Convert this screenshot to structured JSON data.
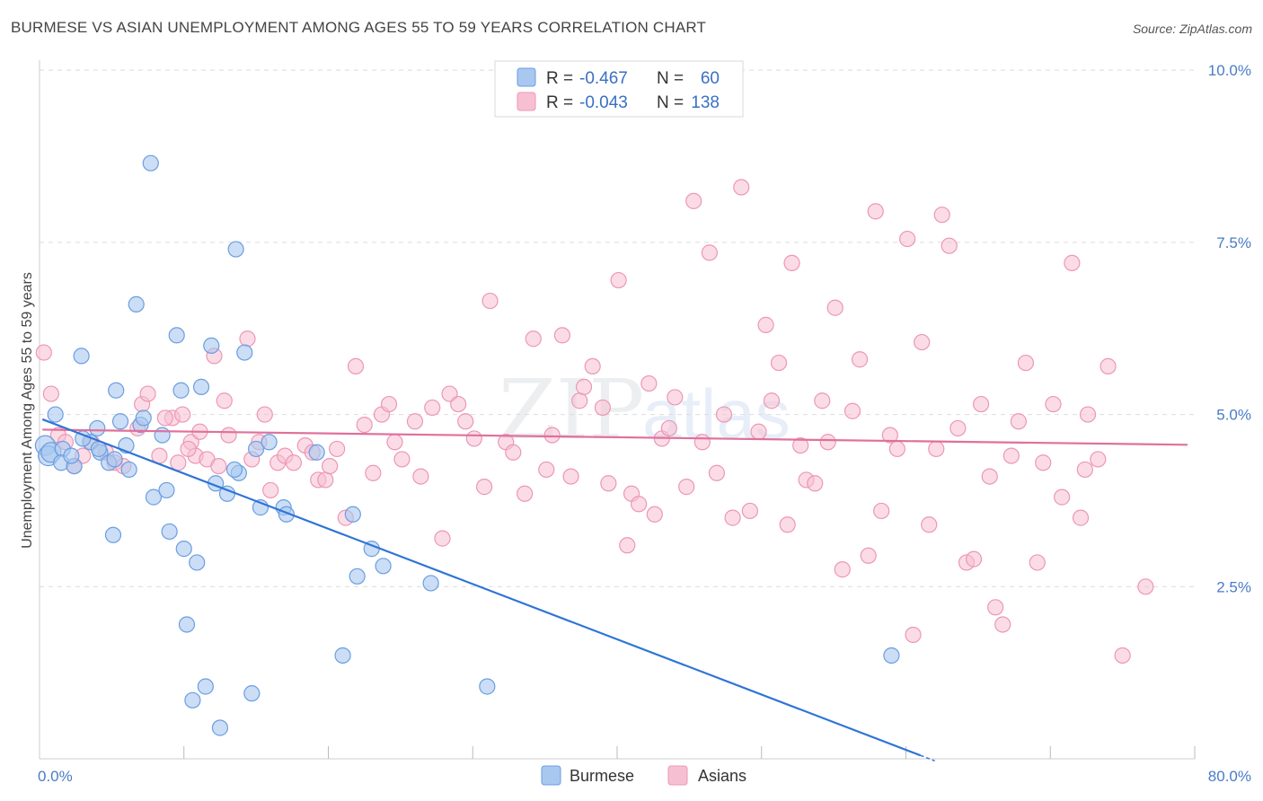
{
  "title": "BURMESE VS ASIAN UNEMPLOYMENT AMONG AGES 55 TO 59 YEARS CORRELATION CHART",
  "source": "Source: ZipAtlas.com",
  "watermark": {
    "zip": "ZIP",
    "atlas": "atlas"
  },
  "colors": {
    "burmese_fill": "#a9c8f0",
    "burmese_stroke": "#6a9ee0",
    "burmese_line": "#2f74d6",
    "asians_fill": "#f7c0d2",
    "asians_stroke": "#ec97b5",
    "asians_line": "#e0709b",
    "tick_text": "#4a7bc8",
    "grid": "#dcdcdc"
  },
  "legend": {
    "r_label": "R =",
    "n_label": "N =",
    "burmese": {
      "r": "-0.467",
      "n": "60"
    },
    "asians": {
      "r": "-0.043",
      "n": "138"
    }
  },
  "bottom_legend": {
    "burmese": "Burmese",
    "asians": "Asians"
  },
  "chart_data": {
    "type": "scatter",
    "title": "BURMESE VS ASIAN UNEMPLOYMENT AMONG AGES 55 TO 59 YEARS CORRELATION CHART",
    "xlabel": "",
    "ylabel": "Unemployment Among Ages 55 to 59 years",
    "xlim": [
      0,
      80
    ],
    "ylim": [
      0,
      10.25
    ],
    "x_tick_labels": [
      "0.0%",
      "80.0%"
    ],
    "y_ticks": [
      2.5,
      5.0,
      7.5,
      10.0
    ],
    "y_tick_labels": [
      "2.5%",
      "5.0%",
      "7.5%",
      "10.0%"
    ],
    "series": [
      {
        "name": "Burmese",
        "r": -0.467,
        "n": 60,
        "trend": {
          "x0": 0.2,
          "y0": 4.93,
          "x1": 61.0,
          "y1": 0.05,
          "dashed_to_x": 62.0
        },
        "points": [
          [
            0.4,
            4.55
          ],
          [
            0.6,
            4.4
          ],
          [
            0.8,
            4.45
          ],
          [
            1.1,
            5.0
          ],
          [
            1.6,
            4.5
          ],
          [
            1.5,
            4.3
          ],
          [
            2.4,
            4.25
          ],
          [
            2.9,
            5.85
          ],
          [
            3.5,
            4.6
          ],
          [
            4.0,
            4.8
          ],
          [
            4.2,
            4.45
          ],
          [
            4.8,
            4.3
          ],
          [
            5.3,
            5.35
          ],
          [
            5.6,
            4.9
          ],
          [
            5.1,
            3.25
          ],
          [
            6.2,
            4.2
          ],
          [
            6.7,
            6.6
          ],
          [
            7.0,
            4.85
          ],
          [
            7.2,
            4.95
          ],
          [
            7.7,
            8.65
          ],
          [
            7.9,
            3.8
          ],
          [
            8.5,
            4.7
          ],
          [
            8.8,
            3.9
          ],
          [
            9.0,
            3.3
          ],
          [
            9.5,
            6.15
          ],
          [
            9.8,
            5.35
          ],
          [
            10.0,
            3.05
          ],
          [
            10.2,
            1.95
          ],
          [
            10.6,
            0.85
          ],
          [
            10.9,
            2.85
          ],
          [
            11.2,
            5.4
          ],
          [
            11.5,
            1.05
          ],
          [
            11.9,
            6.0
          ],
          [
            12.2,
            4.0
          ],
          [
            12.5,
            0.45
          ],
          [
            13.0,
            3.85
          ],
          [
            13.6,
            7.4
          ],
          [
            13.8,
            4.15
          ],
          [
            14.2,
            5.9
          ],
          [
            14.7,
            0.95
          ],
          [
            15.0,
            4.5
          ],
          [
            15.3,
            3.65
          ],
          [
            15.9,
            4.6
          ],
          [
            16.9,
            3.65
          ],
          [
            17.1,
            3.55
          ],
          [
            19.2,
            4.45
          ],
          [
            21.7,
            3.55
          ],
          [
            22.0,
            2.65
          ],
          [
            23.0,
            3.05
          ],
          [
            23.8,
            2.8
          ],
          [
            21.0,
            1.5
          ],
          [
            27.1,
            2.55
          ],
          [
            31.0,
            1.05
          ],
          [
            59.0,
            1.5
          ],
          [
            4.1,
            4.5
          ],
          [
            3.0,
            4.65
          ],
          [
            6.0,
            4.55
          ],
          [
            2.2,
            4.4
          ],
          [
            5.2,
            4.35
          ],
          [
            13.5,
            4.2
          ]
        ]
      },
      {
        "name": "Asians",
        "r": -0.043,
        "n": 138,
        "trend": {
          "x0": 0.2,
          "y0": 4.78,
          "x1": 79.5,
          "y1": 4.56
        },
        "points": [
          [
            0.3,
            5.9
          ],
          [
            0.8,
            5.3
          ],
          [
            1.3,
            4.7
          ],
          [
            1.8,
            4.6
          ],
          [
            2.4,
            4.25
          ],
          [
            3.0,
            4.4
          ],
          [
            3.6,
            4.6
          ],
          [
            4.6,
            4.45
          ],
          [
            5.2,
            4.3
          ],
          [
            5.8,
            4.25
          ],
          [
            6.8,
            4.8
          ],
          [
            7.1,
            5.15
          ],
          [
            7.5,
            5.3
          ],
          [
            8.3,
            4.4
          ],
          [
            9.2,
            4.95
          ],
          [
            9.9,
            5.0
          ],
          [
            10.5,
            4.6
          ],
          [
            10.8,
            4.4
          ],
          [
            11.6,
            4.35
          ],
          [
            12.1,
            5.85
          ],
          [
            12.4,
            4.25
          ],
          [
            12.8,
            5.2
          ],
          [
            13.1,
            4.7
          ],
          [
            14.4,
            6.1
          ],
          [
            14.7,
            4.35
          ],
          [
            15.6,
            5.0
          ],
          [
            16.0,
            3.9
          ],
          [
            16.5,
            4.3
          ],
          [
            17.0,
            4.4
          ],
          [
            17.6,
            4.3
          ],
          [
            18.4,
            4.55
          ],
          [
            18.9,
            4.45
          ],
          [
            19.3,
            4.05
          ],
          [
            19.8,
            4.05
          ],
          [
            20.1,
            4.25
          ],
          [
            20.6,
            4.5
          ],
          [
            21.2,
            3.5
          ],
          [
            21.9,
            5.7
          ],
          [
            22.5,
            4.85
          ],
          [
            23.1,
            4.15
          ],
          [
            23.7,
            5.0
          ],
          [
            24.2,
            5.15
          ],
          [
            24.6,
            4.6
          ],
          [
            25.1,
            4.35
          ],
          [
            26.0,
            4.9
          ],
          [
            26.4,
            4.1
          ],
          [
            27.2,
            5.1
          ],
          [
            27.9,
            3.2
          ],
          [
            28.4,
            5.3
          ],
          [
            29.0,
            5.15
          ],
          [
            29.5,
            4.9
          ],
          [
            30.1,
            4.65
          ],
          [
            30.8,
            3.95
          ],
          [
            31.2,
            6.65
          ],
          [
            32.3,
            4.6
          ],
          [
            32.8,
            4.45
          ],
          [
            33.6,
            3.85
          ],
          [
            34.2,
            6.1
          ],
          [
            35.1,
            4.2
          ],
          [
            35.5,
            4.7
          ],
          [
            36.2,
            6.15
          ],
          [
            36.8,
            4.1
          ],
          [
            37.4,
            5.2
          ],
          [
            37.7,
            5.4
          ],
          [
            38.3,
            5.7
          ],
          [
            39.0,
            5.1
          ],
          [
            39.4,
            4.0
          ],
          [
            40.1,
            6.95
          ],
          [
            40.7,
            3.1
          ],
          [
            41.0,
            3.85
          ],
          [
            41.5,
            3.7
          ],
          [
            42.2,
            5.45
          ],
          [
            42.6,
            3.55
          ],
          [
            43.1,
            4.65
          ],
          [
            43.6,
            4.8
          ],
          [
            44.0,
            5.25
          ],
          [
            44.8,
            3.95
          ],
          [
            45.3,
            8.1
          ],
          [
            45.9,
            4.6
          ],
          [
            46.4,
            7.35
          ],
          [
            46.9,
            4.15
          ],
          [
            47.4,
            5.0
          ],
          [
            48.0,
            3.5
          ],
          [
            48.6,
            8.3
          ],
          [
            49.2,
            3.6
          ],
          [
            49.8,
            4.75
          ],
          [
            50.3,
            6.3
          ],
          [
            50.7,
            5.2
          ],
          [
            51.2,
            5.75
          ],
          [
            51.8,
            3.4
          ],
          [
            52.1,
            7.2
          ],
          [
            52.7,
            4.55
          ],
          [
            53.1,
            4.05
          ],
          [
            53.7,
            4.0
          ],
          [
            54.2,
            5.2
          ],
          [
            54.6,
            4.6
          ],
          [
            55.1,
            6.55
          ],
          [
            55.6,
            2.75
          ],
          [
            56.3,
            5.05
          ],
          [
            56.8,
            5.8
          ],
          [
            57.4,
            2.95
          ],
          [
            57.9,
            7.95
          ],
          [
            58.3,
            3.6
          ],
          [
            58.9,
            4.7
          ],
          [
            59.4,
            4.5
          ],
          [
            60.1,
            7.55
          ],
          [
            60.5,
            1.8
          ],
          [
            61.1,
            6.05
          ],
          [
            61.6,
            3.4
          ],
          [
            62.1,
            4.5
          ],
          [
            62.5,
            7.9
          ],
          [
            63.0,
            7.45
          ],
          [
            63.6,
            4.8
          ],
          [
            64.2,
            2.85
          ],
          [
            64.7,
            2.9
          ],
          [
            65.2,
            5.15
          ],
          [
            65.8,
            4.1
          ],
          [
            66.2,
            2.2
          ],
          [
            66.7,
            1.95
          ],
          [
            67.3,
            4.4
          ],
          [
            67.8,
            4.9
          ],
          [
            68.3,
            5.75
          ],
          [
            69.1,
            2.85
          ],
          [
            69.5,
            4.3
          ],
          [
            70.2,
            5.15
          ],
          [
            70.8,
            3.8
          ],
          [
            71.5,
            7.2
          ],
          [
            72.1,
            3.5
          ],
          [
            72.6,
            5.0
          ],
          [
            73.3,
            4.35
          ],
          [
            74.0,
            5.7
          ],
          [
            75.0,
            1.5
          ],
          [
            76.6,
            2.5
          ],
          [
            72.4,
            4.2
          ],
          [
            10.3,
            4.5
          ],
          [
            9.6,
            4.3
          ],
          [
            11.1,
            4.75
          ],
          [
            15.2,
            4.6
          ],
          [
            8.7,
            4.95
          ]
        ]
      }
    ]
  }
}
